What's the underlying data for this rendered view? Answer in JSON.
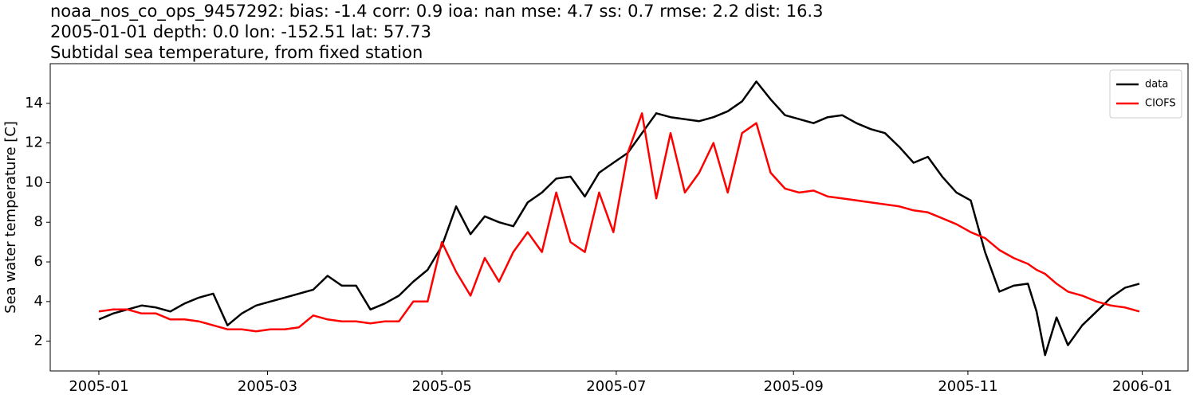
{
  "chart_data": {
    "type": "line",
    "title": "noaa_nos_co_ops_9457292: bias: -1.4  corr: 0.9  ioa: nan  mse: 4.7  ss: 0.7  rmse: 2.2  dist: 16.3",
    "subtitle": "2005-01-01 depth: 0.0 lon: -152.51 lat: 57.73",
    "subtitle2": "Subtidal sea temperature, from fixed station",
    "y_label": "Sea water temperature [C]",
    "x": [
      "2005-01-01",
      "2005-01-06",
      "2005-01-11",
      "2005-01-16",
      "2005-01-21",
      "2005-01-26",
      "2005-01-31",
      "2005-02-05",
      "2005-02-10",
      "2005-02-15",
      "2005-02-20",
      "2005-02-25",
      "2005-03-02",
      "2005-03-07",
      "2005-03-12",
      "2005-03-17",
      "2005-03-22",
      "2005-03-27",
      "2005-04-01",
      "2005-04-06",
      "2005-04-11",
      "2005-04-16",
      "2005-04-21",
      "2005-04-26",
      "2005-05-01",
      "2005-05-06",
      "2005-05-11",
      "2005-05-16",
      "2005-05-21",
      "2005-05-26",
      "2005-05-31",
      "2005-06-05",
      "2005-06-10",
      "2005-06-15",
      "2005-06-20",
      "2005-06-25",
      "2005-06-30",
      "2005-07-05",
      "2005-07-10",
      "2005-07-15",
      "2005-07-20",
      "2005-07-25",
      "2005-07-30",
      "2005-08-04",
      "2005-08-09",
      "2005-08-14",
      "2005-08-19",
      "2005-08-24",
      "2005-08-29",
      "2005-09-03",
      "2005-09-08",
      "2005-09-13",
      "2005-09-18",
      "2005-09-23",
      "2005-09-28",
      "2005-10-03",
      "2005-10-08",
      "2005-10-13",
      "2005-10-18",
      "2005-10-23",
      "2005-10-28",
      "2005-11-02",
      "2005-11-07",
      "2005-11-12",
      "2005-11-17",
      "2005-11-22",
      "2005-11-25",
      "2005-11-28",
      "2005-12-02",
      "2005-12-06",
      "2005-12-11",
      "2005-12-16",
      "2005-12-21",
      "2005-12-26",
      "2005-12-31"
    ],
    "series": [
      {
        "name": "data",
        "color": "#000000",
        "values": [
          3.1,
          3.4,
          3.6,
          3.8,
          3.7,
          3.5,
          3.9,
          4.2,
          4.4,
          2.8,
          3.4,
          3.8,
          4.0,
          4.2,
          4.4,
          4.6,
          5.3,
          4.8,
          4.8,
          3.6,
          3.9,
          4.3,
          5.0,
          5.6,
          6.8,
          8.8,
          7.4,
          8.3,
          8.0,
          7.8,
          9.0,
          9.5,
          10.2,
          10.3,
          9.3,
          10.5,
          11.0,
          11.5,
          12.5,
          13.5,
          13.3,
          13.2,
          13.1,
          13.3,
          13.6,
          14.1,
          15.1,
          14.2,
          13.4,
          13.2,
          13.0,
          13.3,
          13.4,
          13.0,
          12.7,
          12.5,
          11.8,
          11.0,
          11.3,
          10.3,
          9.5,
          9.1,
          6.5,
          4.5,
          4.8,
          4.9,
          3.5,
          1.3,
          3.2,
          1.8,
          2.8,
          3.5,
          4.2,
          4.7,
          4.9
        ]
      },
      {
        "name": "CIOFS",
        "color": "#ff0000",
        "values": [
          3.5,
          3.6,
          3.6,
          3.4,
          3.4,
          3.1,
          3.1,
          3.0,
          2.8,
          2.6,
          2.6,
          2.5,
          2.6,
          2.6,
          2.7,
          3.3,
          3.1,
          3.0,
          3.0,
          2.9,
          3.0,
          3.0,
          4.0,
          4.0,
          7.0,
          5.5,
          4.3,
          6.2,
          5.0,
          6.5,
          7.5,
          6.5,
          9.5,
          7.0,
          6.5,
          9.5,
          7.5,
          11.5,
          13.5,
          9.2,
          12.5,
          9.5,
          10.5,
          12.0,
          9.5,
          12.5,
          13.0,
          10.5,
          9.7,
          9.5,
          9.6,
          9.3,
          9.2,
          9.1,
          9.0,
          8.9,
          8.8,
          8.6,
          8.5,
          8.2,
          7.9,
          7.5,
          7.2,
          6.6,
          6.2,
          5.9,
          5.6,
          5.4,
          4.9,
          4.5,
          4.3,
          4.0,
          3.8,
          3.7,
          3.5
        ]
      }
    ],
    "xlim": [
      "2004-12-15",
      "2006-01-17"
    ],
    "xticks": [
      {
        "value": "2005-01-01",
        "label": "2005-01"
      },
      {
        "value": "2005-03-01",
        "label": "2005-03"
      },
      {
        "value": "2005-05-01",
        "label": "2005-05"
      },
      {
        "value": "2005-07-01",
        "label": "2005-07"
      },
      {
        "value": "2005-09-01",
        "label": "2005-09"
      },
      {
        "value": "2005-11-01",
        "label": "2005-11"
      },
      {
        "value": "2006-01-01",
        "label": "2006-01"
      }
    ],
    "ylim": [
      0.5,
      16.0
    ],
    "yticks": [
      2,
      4,
      6,
      8,
      10,
      12,
      14
    ],
    "legend": "upper right"
  }
}
